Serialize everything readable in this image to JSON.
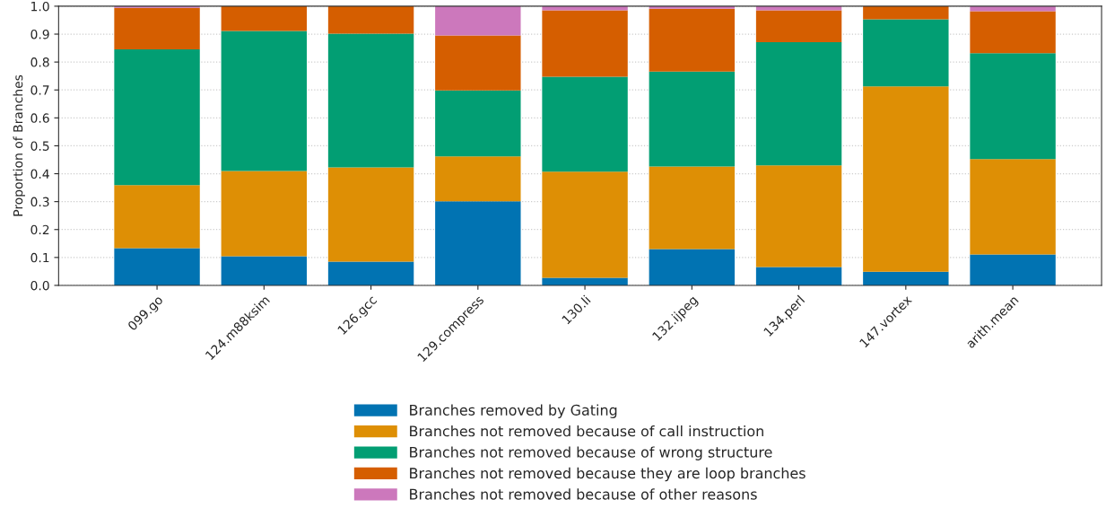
{
  "chart_data": {
    "type": "bar",
    "stacked": true,
    "ylabel": "Proportion of Branches",
    "categories": [
      "099.go",
      "124.m88ksim",
      "126.gcc",
      "129.compress",
      "130.li",
      "132.ijpeg",
      "134.perl",
      "147.vortex",
      "arith.mean"
    ],
    "series": [
      {
        "name": "Branches removed by Gating",
        "color": "#0173b2",
        "values": [
          0.133,
          0.104,
          0.085,
          0.301,
          0.027,
          0.13,
          0.066,
          0.049,
          0.111
        ]
      },
      {
        "name": "Branches not removed because of call instruction",
        "color": "#de8f05",
        "values": [
          0.226,
          0.306,
          0.338,
          0.161,
          0.38,
          0.296,
          0.364,
          0.664,
          0.341
        ]
      },
      {
        "name": "Branches not removed because of wrong structure",
        "color": "#029e73",
        "values": [
          0.486,
          0.501,
          0.479,
          0.236,
          0.34,
          0.34,
          0.441,
          0.24,
          0.38
        ]
      },
      {
        "name": "Branches not removed because they are loop branches",
        "color": "#d55e00",
        "values": [
          0.149,
          0.089,
          0.098,
          0.197,
          0.238,
          0.225,
          0.114,
          0.047,
          0.15
        ]
      },
      {
        "name": "Branches not removed because of other reasons",
        "color": "#cc78bc",
        "values": [
          0.006,
          0.0,
          0.0,
          0.105,
          0.015,
          0.009,
          0.015,
          0.0,
          0.018
        ]
      }
    ],
    "ylim": [
      0,
      1.0
    ],
    "yticks": [
      {
        "value": 0,
        "label": "0.0"
      },
      0.1,
      0.2,
      0.3,
      0.4,
      0.5,
      0.6,
      0.7,
      0.8,
      0.9,
      {
        "value": 1,
        "label": "1.0"
      }
    ],
    "grid": "y",
    "legend": "bottom"
  }
}
